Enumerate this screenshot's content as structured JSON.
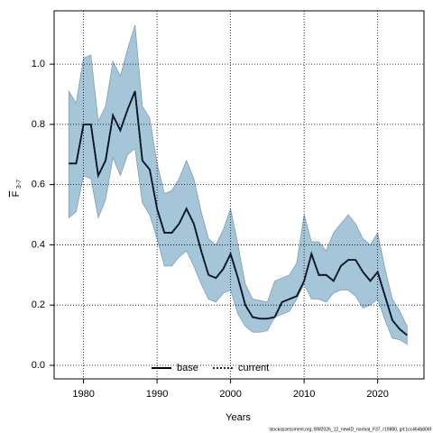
{
  "chart_data": {
    "type": "line",
    "xlabel": "Years",
    "ylabel": "F",
    "ylabel_subscript": "3-7",
    "footer": "stockassessment.org, BM2026_12_newID_normal_F37, r19880, git:1cc464b806f",
    "x": [
      1978,
      1979,
      1980,
      1981,
      1982,
      1983,
      1984,
      1985,
      1986,
      1987,
      1988,
      1989,
      1990,
      1991,
      1992,
      1993,
      1994,
      1995,
      1996,
      1997,
      1998,
      1999,
      2000,
      2001,
      2002,
      2003,
      2004,
      2005,
      2006,
      2007,
      2008,
      2009,
      2010,
      2011,
      2012,
      2013,
      2014,
      2015,
      2016,
      2017,
      2018,
      2019,
      2020,
      2021,
      2022,
      2023,
      2024
    ],
    "xlim": [
      1976,
      2026.3
    ],
    "xticks": [
      1980,
      1990,
      2000,
      2010,
      2020
    ],
    "ylim": [
      -0.045,
      1.177
    ],
    "yticks": [
      {
        "value": 0,
        "label": "0.0"
      },
      0.2,
      0.4,
      0.6,
      0.8,
      {
        "value": 1,
        "label": "1.0"
      }
    ],
    "grid": true,
    "legend": "bottom",
    "band": {
      "color": "#a5c5d9",
      "upper": [
        0.91,
        0.87,
        1.02,
        1.03,
        0.81,
        0.86,
        1.01,
        0.96,
        1.05,
        1.13,
        0.86,
        0.82,
        0.67,
        0.57,
        0.58,
        0.62,
        0.68,
        0.62,
        0.51,
        0.42,
        0.4,
        0.45,
        0.52,
        0.4,
        0.27,
        0.22,
        0.215,
        0.21,
        0.28,
        0.29,
        0.3,
        0.34,
        0.5,
        0.41,
        0.41,
        0.38,
        0.44,
        0.47,
        0.5,
        0.47,
        0.42,
        0.4,
        0.44,
        0.32,
        0.22,
        0.18,
        0.13
      ],
      "lower": [
        0.49,
        0.51,
        0.63,
        0.62,
        0.49,
        0.55,
        0.69,
        0.63,
        0.7,
        0.72,
        0.54,
        0.5,
        0.42,
        0.33,
        0.33,
        0.36,
        0.38,
        0.33,
        0.27,
        0.22,
        0.21,
        0.24,
        0.25,
        0.17,
        0.13,
        0.11,
        0.11,
        0.115,
        0.16,
        0.17,
        0.18,
        0.22,
        0.27,
        0.22,
        0.22,
        0.21,
        0.24,
        0.25,
        0.25,
        0.23,
        0.19,
        0.2,
        0.22,
        0.15,
        0.09,
        0.085,
        0.07
      ]
    },
    "series": [
      {
        "name": "base",
        "color": "#000000",
        "dash": "solid",
        "values": [
          0.67,
          0.67,
          0.8,
          0.8,
          0.63,
          0.68,
          0.83,
          0.78,
          0.85,
          0.91,
          0.68,
          0.65,
          0.52,
          0.44,
          0.44,
          0.47,
          0.52,
          0.47,
          0.38,
          0.3,
          0.29,
          0.32,
          0.37,
          0.29,
          0.2,
          0.16,
          0.155,
          0.155,
          0.16,
          0.21,
          0.22,
          0.23,
          0.28,
          0.37,
          0.3,
          0.3,
          0.28,
          0.33,
          0.35,
          0.35,
          0.31,
          0.28,
          0.31,
          0.23,
          0.15,
          0.12,
          0.1
        ]
      },
      {
        "name": "current",
        "color": "#0a2a45",
        "dash": "dotted",
        "values": [
          0.67,
          0.67,
          0.8,
          0.8,
          0.63,
          0.68,
          0.83,
          0.78,
          0.85,
          0.91,
          0.68,
          0.65,
          0.52,
          0.44,
          0.44,
          0.47,
          0.52,
          0.47,
          0.38,
          0.3,
          0.29,
          0.32,
          0.37,
          0.29,
          0.2,
          0.16,
          0.155,
          0.155,
          0.16,
          0.21,
          0.22,
          0.23,
          0.28,
          0.37,
          0.3,
          0.3,
          0.28,
          0.33,
          0.35,
          0.35,
          0.31,
          0.28,
          0.31,
          0.23,
          0.15,
          0.12,
          0.1
        ]
      }
    ]
  }
}
